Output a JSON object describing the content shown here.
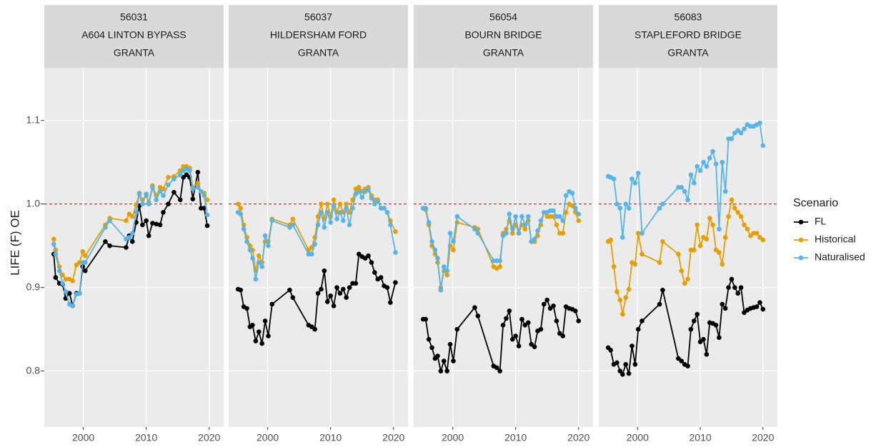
{
  "chart_data": [
    {
      "type": "line",
      "strip": [
        "56031",
        "A604 LINTON BYPASS",
        "GRANTA"
      ],
      "ylabel": "LIFE (F) OE",
      "legend_title": "Scenario",
      "x": [
        1995.3,
        1995.6,
        1996.2,
        1996.7,
        1997.2,
        1997.8,
        1998.3,
        1998.9,
        1999.4,
        1999.9,
        2000.3,
        2003.5,
        2004.2,
        2006.8,
        2007.3,
        2007.8,
        2008.4,
        2008.9,
        2009.4,
        2010.0,
        2010.4,
        2011.0,
        2011.6,
        2012.2,
        2012.7,
        2013.5,
        2014.4,
        2015.4,
        2015.9,
        2016.4,
        2016.9,
        2017.4,
        2018.2,
        2018.7,
        2019.2,
        2019.7
      ],
      "series": [
        {
          "name": "FL",
          "color": "#000000",
          "values": [
            0.94,
            0.912,
            0.905,
            0.904,
            0.887,
            0.893,
            0.878,
            0.893,
            0.893,
            0.925,
            0.92,
            0.955,
            0.95,
            0.948,
            0.962,
            0.955,
            0.978,
            0.998,
            0.975,
            0.98,
            0.962,
            0.977,
            0.976,
            0.975,
            0.99,
            1.0,
            1.014,
            1.005,
            1.032,
            1.035,
            1.032,
            1.006,
            1.038,
            0.995,
            0.995,
            0.974
          ]
        },
        {
          "name": "Historical",
          "color": "#E69F00",
          "values": [
            0.958,
            0.945,
            0.925,
            0.915,
            0.91,
            0.91,
            0.908,
            0.927,
            0.93,
            0.943,
            0.938,
            0.975,
            0.983,
            0.98,
            0.988,
            0.985,
            0.999,
            1.013,
            1.005,
            1.01,
            1.002,
            1.022,
            1.01,
            1.02,
            1.018,
            1.032,
            1.033,
            1.04,
            1.045,
            1.045,
            1.043,
            1.02,
            1.025,
            1.015,
            1.013,
            1.005
          ]
        },
        {
          "name": "Naturalised",
          "color": "#56B4E9",
          "values": [
            0.952,
            0.94,
            0.92,
            0.905,
            0.895,
            0.88,
            0.878,
            0.892,
            0.893,
            0.93,
            0.93,
            0.972,
            0.98,
            0.958,
            0.96,
            0.965,
            0.99,
            1.012,
            1.0,
            1.012,
            1.0,
            1.02,
            1.005,
            1.015,
            1.01,
            1.023,
            1.03,
            1.035,
            1.04,
            1.042,
            1.04,
            1.018,
            1.02,
            1.015,
            1.01,
            0.987
          ]
        }
      ],
      "xlim": [
        1993.8,
        2022.3
      ],
      "ylim": [
        0.733,
        1.163
      ],
      "xticks": [
        2000,
        2010,
        2020
      ],
      "yticks": [
        0.8,
        0.9,
        {
          "value": 1,
          "label": "1.0"
        },
        1.1
      ],
      "hline": {
        "value": 1,
        "color": "#ff0000"
      }
    },
    {
      "type": "line",
      "strip": [
        "56037",
        "HILDERSHAM FORD",
        "GRANTA"
      ],
      "x": [
        1995.3,
        1995.7,
        1996.2,
        1996.7,
        1997.2,
        1997.6,
        1998.1,
        1998.6,
        1999.1,
        1999.6,
        2000.1,
        2000.7,
        2003.5,
        2004.0,
        2006.5,
        2007.0,
        2007.5,
        2008.0,
        2008.5,
        2009.0,
        2009.5,
        2010.0,
        2010.5,
        2011.0,
        2011.5,
        2012.0,
        2012.5,
        2013.0,
        2013.5,
        2014.0,
        2014.5,
        2015.0,
        2015.5,
        2016.0,
        2016.5,
        2017.0,
        2017.5,
        2018.0,
        2018.5,
        2019.0,
        2019.5,
        2020.3
      ],
      "series": [
        {
          "name": "FL",
          "color": "#000000",
          "values": [
            0.898,
            0.897,
            0.877,
            0.875,
            0.853,
            0.855,
            0.836,
            0.847,
            0.833,
            0.86,
            0.842,
            0.88,
            0.897,
            0.888,
            0.855,
            0.853,
            0.85,
            0.893,
            0.898,
            0.92,
            0.883,
            0.89,
            0.878,
            0.9,
            0.893,
            0.898,
            0.888,
            0.9,
            0.905,
            0.905,
            0.94,
            0.937,
            0.935,
            0.938,
            0.93,
            0.918,
            0.91,
            0.912,
            0.902,
            0.9,
            0.882,
            0.906
          ]
        },
        {
          "name": "Historical",
          "color": "#E69F00",
          "values": [
            1.0,
            0.995,
            0.975,
            0.96,
            0.95,
            0.945,
            0.92,
            0.938,
            0.93,
            0.955,
            0.955,
            0.982,
            0.975,
            0.982,
            0.945,
            0.948,
            0.96,
            0.985,
            1.0,
            0.982,
            1.0,
            0.985,
            1.005,
            0.99,
            1.0,
            0.99,
            1.0,
            0.99,
            1.005,
            1.018,
            1.02,
            1.015,
            1.018,
            1.02,
            1.01,
            1.005,
            1.005,
            0.995,
            0.995,
            0.99,
            0.98,
            0.967
          ]
        },
        {
          "name": "Naturalised",
          "color": "#56B4E9",
          "values": [
            0.99,
            0.988,
            0.97,
            0.955,
            0.945,
            0.935,
            0.91,
            0.93,
            0.925,
            0.962,
            0.95,
            0.98,
            0.972,
            0.975,
            0.94,
            0.94,
            0.952,
            0.975,
            0.99,
            0.972,
            0.99,
            0.978,
            0.998,
            0.982,
            0.99,
            0.98,
            0.995,
            0.975,
            0.995,
            1.012,
            1.015,
            1.008,
            1.015,
            1.017,
            1.007,
            1.0,
            1.003,
            0.995,
            0.995,
            0.99,
            0.975,
            0.942
          ]
        }
      ],
      "xlim": [
        1993.8,
        2022.3
      ],
      "ylim": [
        0.733,
        1.163
      ],
      "xticks": [
        2000,
        2010,
        2020
      ],
      "yticks": [
        0.8,
        0.9,
        {
          "value": 1,
          "label": "1.0"
        },
        1.1
      ],
      "hline": {
        "value": 1,
        "color": "#ff0000"
      }
    },
    {
      "type": "line",
      "strip": [
        "56054",
        "BOURN BRIDGE",
        "GRANTA"
      ],
      "x": [
        1995.3,
        1995.7,
        1996.2,
        1996.7,
        1997.2,
        1997.6,
        1998.1,
        1998.6,
        1999.1,
        1999.6,
        2000.1,
        2000.7,
        2003.5,
        2004.0,
        2006.5,
        2007.0,
        2007.5,
        2008.0,
        2008.5,
        2009.0,
        2009.5,
        2010.0,
        2010.5,
        2011.0,
        2011.5,
        2012.0,
        2012.5,
        2013.0,
        2013.5,
        2014.0,
        2014.5,
        2015.0,
        2015.5,
        2016.0,
        2016.5,
        2017.0,
        2017.5,
        2018.0,
        2018.5,
        2019.0,
        2019.5,
        2020.0
      ],
      "series": [
        {
          "name": "FL",
          "color": "#000000",
          "values": [
            0.862,
            0.862,
            0.838,
            0.828,
            0.815,
            0.818,
            0.8,
            0.812,
            0.8,
            0.832,
            0.812,
            0.85,
            0.876,
            0.866,
            0.806,
            0.804,
            0.8,
            0.855,
            0.863,
            0.872,
            0.838,
            0.842,
            0.83,
            0.862,
            0.855,
            0.858,
            0.832,
            0.829,
            0.848,
            0.85,
            0.88,
            0.885,
            0.875,
            0.878,
            0.86,
            0.845,
            0.842,
            0.877,
            0.875,
            0.874,
            0.872,
            0.86
          ]
        },
        {
          "name": "Historical",
          "color": "#E69F00",
          "values": [
            0.995,
            0.993,
            0.975,
            0.95,
            0.94,
            0.93,
            0.9,
            0.92,
            0.915,
            0.95,
            0.945,
            0.978,
            0.972,
            0.97,
            0.925,
            0.923,
            0.925,
            0.965,
            0.97,
            0.98,
            0.965,
            0.975,
            0.965,
            0.975,
            0.97,
            0.98,
            0.955,
            0.955,
            0.962,
            0.975,
            0.99,
            0.985,
            0.985,
            0.985,
            0.975,
            0.965,
            0.965,
            0.99,
            1.0,
            0.998,
            0.99,
            0.98
          ]
        },
        {
          "name": "Naturalised",
          "color": "#56B4E9",
          "values": [
            0.995,
            0.995,
            0.978,
            0.955,
            0.945,
            0.935,
            0.897,
            0.925,
            0.92,
            0.965,
            0.955,
            0.985,
            0.97,
            0.965,
            0.932,
            0.932,
            0.932,
            0.962,
            0.965,
            0.988,
            0.97,
            0.985,
            0.965,
            0.985,
            0.975,
            0.985,
            0.955,
            0.958,
            0.968,
            0.98,
            0.99,
            0.99,
            0.992,
            0.992,
            0.985,
            0.985,
            0.98,
            1.01,
            1.015,
            1.013,
            0.995,
            0.988
          ]
        }
      ],
      "xlim": [
        1993.8,
        2022.3
      ],
      "ylim": [
        0.733,
        1.163
      ],
      "xticks": [
        2000,
        2010,
        2020
      ],
      "yticks": [
        0.8,
        0.9,
        {
          "value": 1,
          "label": "1.0"
        },
        1.1
      ],
      "hline": {
        "value": 1,
        "color": "#ff0000"
      }
    },
    {
      "type": "line",
      "strip": [
        "56083",
        "STAPLEFORD BRIDGE",
        "GRANTA"
      ],
      "x": [
        1995.3,
        1995.7,
        1996.2,
        1996.7,
        1997.2,
        1997.6,
        1998.1,
        1998.6,
        1999.1,
        1999.6,
        2000.1,
        2000.7,
        2003.5,
        2004.0,
        2006.5,
        2007.0,
        2007.5,
        2008.0,
        2008.5,
        2009.0,
        2009.5,
        2010.0,
        2010.5,
        2011.0,
        2011.5,
        2012.0,
        2012.5,
        2013.0,
        2013.5,
        2014.0,
        2014.5,
        2015.0,
        2015.5,
        2016.0,
        2016.5,
        2017.0,
        2017.5,
        2018.0,
        2018.5,
        2019.0,
        2019.5,
        2020.0
      ],
      "series": [
        {
          "name": "FL",
          "color": "#000000",
          "values": [
            0.828,
            0.825,
            0.808,
            0.81,
            0.8,
            0.796,
            0.808,
            0.797,
            0.83,
            0.808,
            0.85,
            0.86,
            0.88,
            0.897,
            0.815,
            0.812,
            0.808,
            0.806,
            0.85,
            0.86,
            0.868,
            0.835,
            0.838,
            0.82,
            0.858,
            0.857,
            0.855,
            0.84,
            0.88,
            0.875,
            0.9,
            0.91,
            0.9,
            0.893,
            0.9,
            0.87,
            0.873,
            0.875,
            0.876,
            0.877,
            0.882,
            0.874
          ]
        },
        {
          "name": "Historical",
          "color": "#E69F00",
          "values": [
            0.955,
            0.957,
            0.925,
            0.895,
            0.885,
            0.868,
            0.888,
            0.898,
            0.93,
            0.928,
            0.965,
            0.94,
            0.93,
            0.955,
            0.94,
            0.92,
            0.905,
            0.91,
            0.945,
            0.945,
            0.975,
            0.95,
            0.96,
            0.958,
            0.983,
            0.975,
            0.945,
            0.942,
            0.928,
            0.96,
            0.985,
            1.005,
            0.995,
            0.99,
            0.985,
            0.975,
            0.97,
            0.962,
            0.965,
            0.965,
            0.96,
            0.957
          ]
        },
        {
          "name": "Naturalised",
          "color": "#56B4E9",
          "values": [
            1.033,
            1.032,
            1.03,
            1.0,
            0.995,
            0.96,
            1.0,
            0.995,
            1.03,
            1.025,
            1.037,
            0.965,
            0.995,
            1.0,
            1.02,
            1.02,
            1.015,
            1.005,
            1.035,
            1.025,
            1.045,
            1.04,
            1.05,
            1.045,
            1.055,
            1.063,
            1.048,
            0.97,
            1.05,
            1.015,
            1.078,
            1.078,
            1.085,
            1.088,
            1.085,
            1.09,
            1.095,
            1.093,
            1.093,
            1.095,
            1.097,
            1.07
          ]
        }
      ],
      "xlim": [
        1993.8,
        2022.3
      ],
      "ylim": [
        0.733,
        1.163
      ],
      "xticks": [
        2000,
        2010,
        2020
      ],
      "yticks": [
        0.8,
        0.9,
        {
          "value": 1,
          "label": "1.0"
        },
        1.1
      ],
      "hline": {
        "value": 1,
        "color": "#ff0000"
      }
    }
  ]
}
